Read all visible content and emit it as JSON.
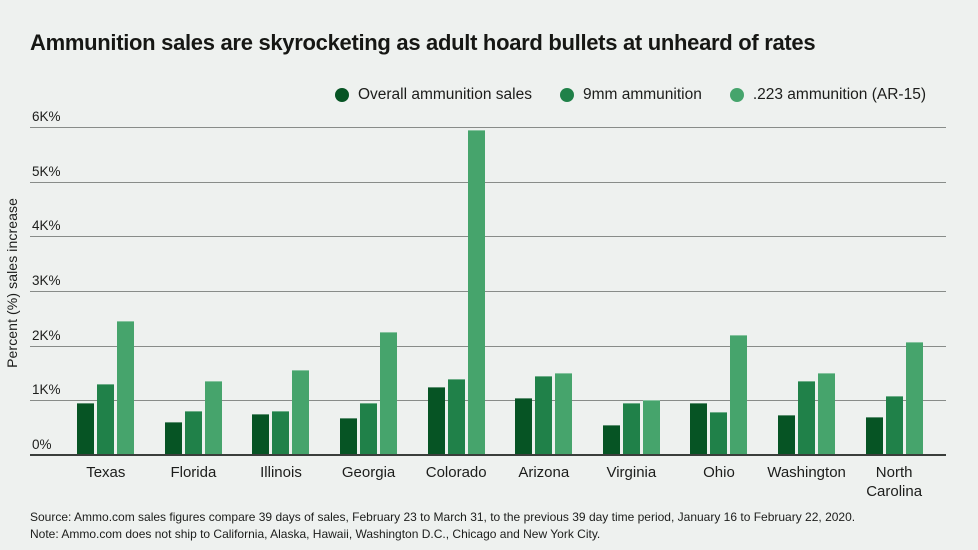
{
  "title": "Ammunition sales are skyrocketing as adult hoard bullets at unheard of rates",
  "y_axis_title": "Percent (%) sales increase",
  "footer": {
    "source": "Source: Ammo.com sales figures compare 39 days of sales, February 23 to March 31, to the previous 39 day time period, January 16 to February 22, 2020.",
    "note": "Note: Ammo.com does not ship to California, Alaska, Hawaii, Washington D.C., Chicago and New York City."
  },
  "colors": {
    "background": "#eef1ef",
    "gridline": "#888c89",
    "baseline": "#3a3e3b",
    "text": "#1c1d1b",
    "overall": "#065424",
    "nine_mm": "#208149",
    "ar15": "#46a46c"
  },
  "chart_data": {
    "type": "bar",
    "title": "Ammunition sales are skyrocketing as adult hoard bullets at unheard of rates",
    "xlabel": "",
    "ylabel": "Percent (%) sales increase",
    "ylim": [
      0,
      6000
    ],
    "y_ticks": [
      "0%",
      "1K%",
      "2K%",
      "3K%",
      "4K%",
      "5K%",
      "6K%"
    ],
    "grid": "horizontal",
    "legend_position": "top",
    "categories": [
      "Texas",
      "Florida",
      "Illinois",
      "Georgia",
      "Colorado",
      "Arizona",
      "Virginia",
      "Ohio",
      "Washington",
      "North Carolina"
    ],
    "series": [
      {
        "name": "Overall ammunition sales",
        "color": "#065424",
        "values": [
          950,
          600,
          750,
          680,
          1250,
          1050,
          550,
          950,
          740,
          700
        ]
      },
      {
        "name": "9mm ammunition",
        "color": "#208149",
        "values": [
          1300,
          800,
          800,
          950,
          1400,
          1450,
          950,
          780,
          1350,
          1080
        ]
      },
      {
        "name": ".223 ammunition (AR-15)",
        "color": "#46a46c",
        "values": [
          2450,
          1350,
          1550,
          2250,
          5950,
          1500,
          1000,
          2200,
          1500,
          2070
        ]
      }
    ]
  }
}
